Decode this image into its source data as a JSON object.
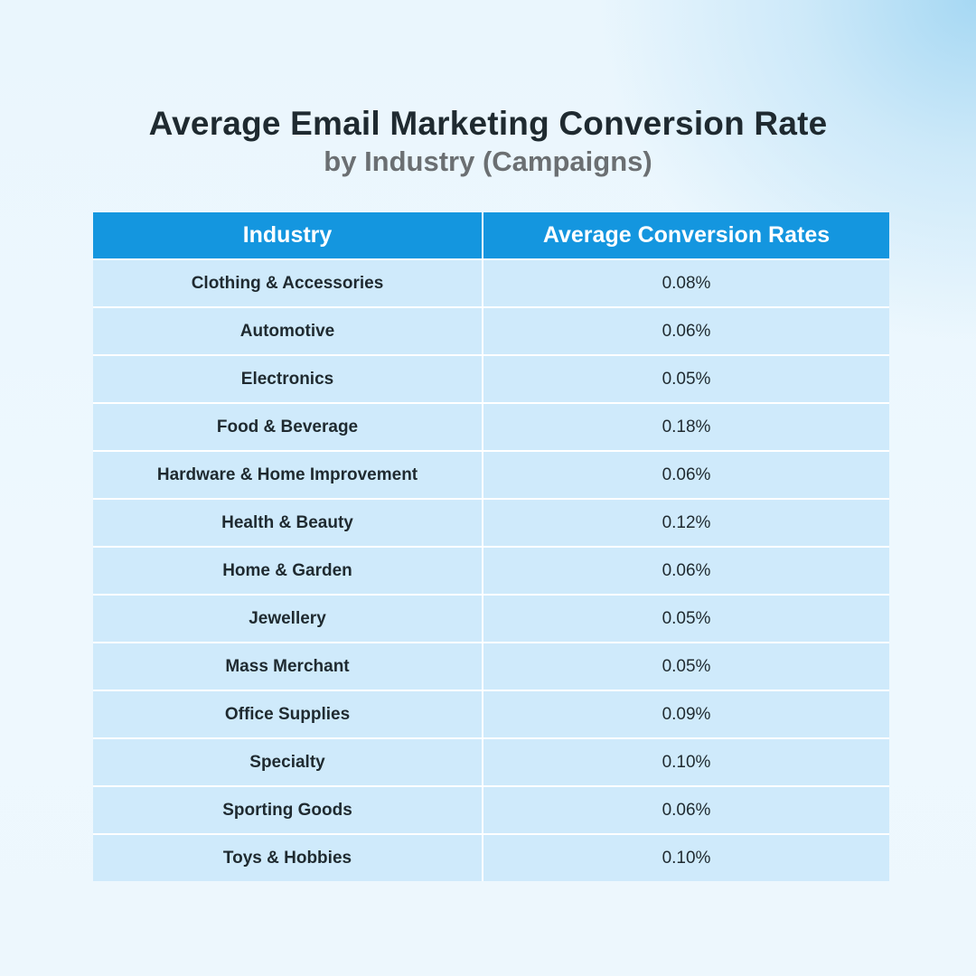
{
  "header": {
    "title": "Average Email Marketing Conversion Rate",
    "subtitle": "by Industry (Campaigns)"
  },
  "colors": {
    "header_bg": "#1496df",
    "row_bg": "#cfeafb",
    "title": "#1f2a30",
    "subtitle": "#6b6f72"
  },
  "chart_data": {
    "type": "table",
    "title": "Average Email Marketing Conversion Rate",
    "subtitle": "by Industry (Campaigns)",
    "columns": [
      "Industry",
      "Average Conversion Rates"
    ],
    "rows": [
      {
        "industry": "Clothing & Accessories",
        "rate": "0.08%"
      },
      {
        "industry": "Automotive",
        "rate": "0.06%"
      },
      {
        "industry": "Electronics",
        "rate": "0.05%"
      },
      {
        "industry": "Food & Beverage",
        "rate": "0.18%"
      },
      {
        "industry": "Hardware & Home Improvement",
        "rate": "0.06%"
      },
      {
        "industry": "Health & Beauty",
        "rate": "0.12%"
      },
      {
        "industry": "Home & Garden",
        "rate": "0.06%"
      },
      {
        "industry": "Jewellery",
        "rate": "0.05%"
      },
      {
        "industry": "Mass Merchant",
        "rate": "0.05%"
      },
      {
        "industry": "Office Supplies",
        "rate": "0.09%"
      },
      {
        "industry": "Specialty",
        "rate": "0.10%"
      },
      {
        "industry": "Sporting Goods",
        "rate": "0.06%"
      },
      {
        "industry": "Toys & Hobbies",
        "rate": "0.10%"
      }
    ]
  }
}
